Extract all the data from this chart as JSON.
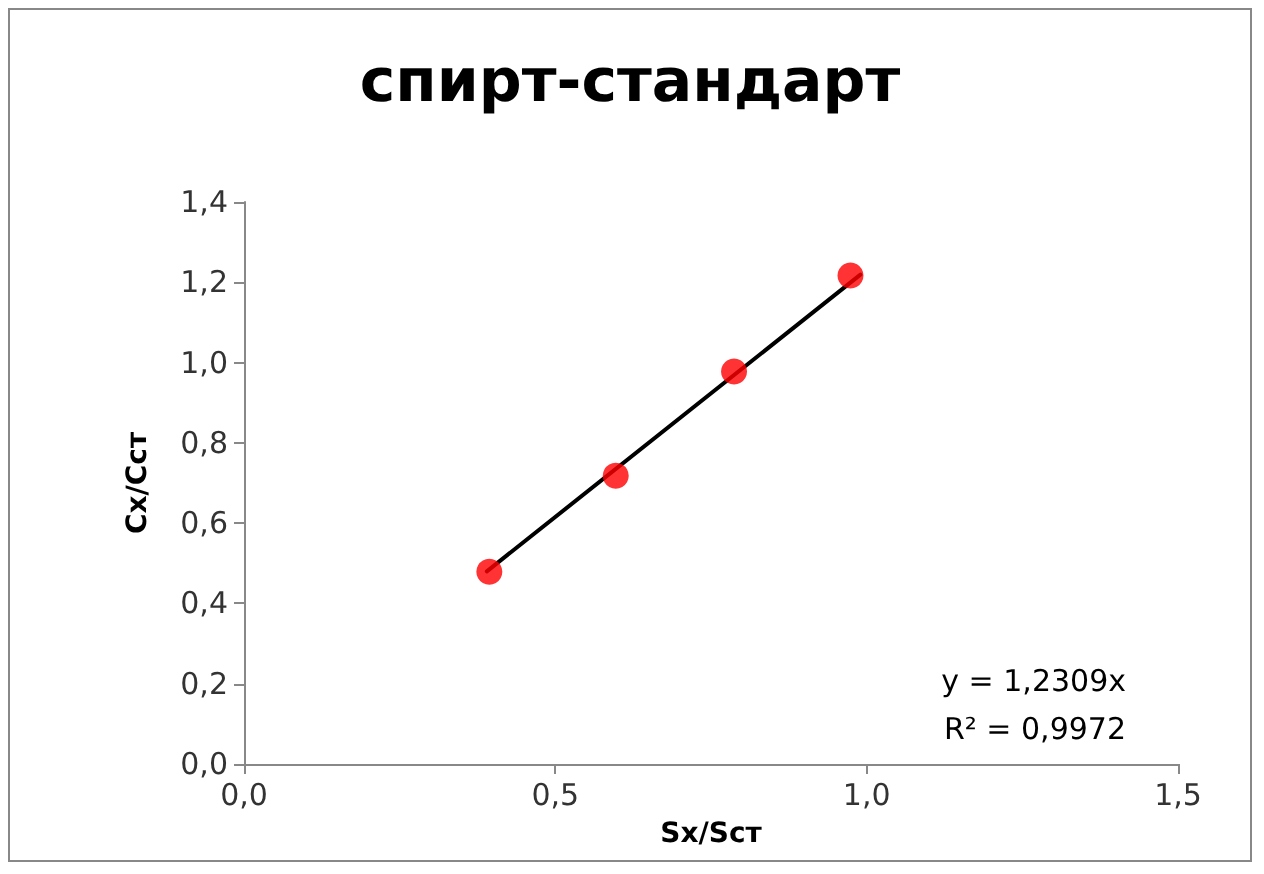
{
  "chart_data": {
    "type": "scatter",
    "title": "спирт-стандарт",
    "xlabel": "Sx/Sст",
    "ylabel": "Cx/Cст",
    "x": [
      0.394,
      0.597,
      0.787,
      0.974
    ],
    "series": [
      {
        "color": "#ff0000",
        "values": [
          0.479,
          0.718,
          0.978,
          1.217
        ],
        "marker": "circle"
      },
      {
        "type": "line",
        "color": "#000000",
        "x": [
          0.39,
          0.99
        ],
        "values": [
          0.48,
          1.219
        ],
        "marker": "none",
        "line_style": "solid"
      }
    ],
    "xlim": [
      0,
      1.5
    ],
    "xticks": [
      {
        "value": 0,
        "label": "0,0"
      },
      {
        "value": 0.5,
        "label": "0,5"
      },
      {
        "value": 1,
        "label": "1,0"
      },
      {
        "value": 1.5,
        "label": "1,5"
      }
    ],
    "ylim": [
      0,
      1.4
    ],
    "yticks": [
      {
        "value": 0,
        "label": "0,0"
      },
      {
        "value": 0.2,
        "label": "0,2"
      },
      {
        "value": 0.4,
        "label": "0,4"
      },
      {
        "value": 0.6,
        "label": "0,6"
      },
      {
        "value": 0.8,
        "label": "0,8"
      },
      {
        "value": 1,
        "label": "1,0"
      },
      {
        "value": 1.2,
        "label": "1,2"
      },
      {
        "value": 1.4,
        "label": "1,4"
      }
    ],
    "annotations": [
      "y = 1,2309x",
      "R² = 0,9972"
    ],
    "grid": false
  }
}
